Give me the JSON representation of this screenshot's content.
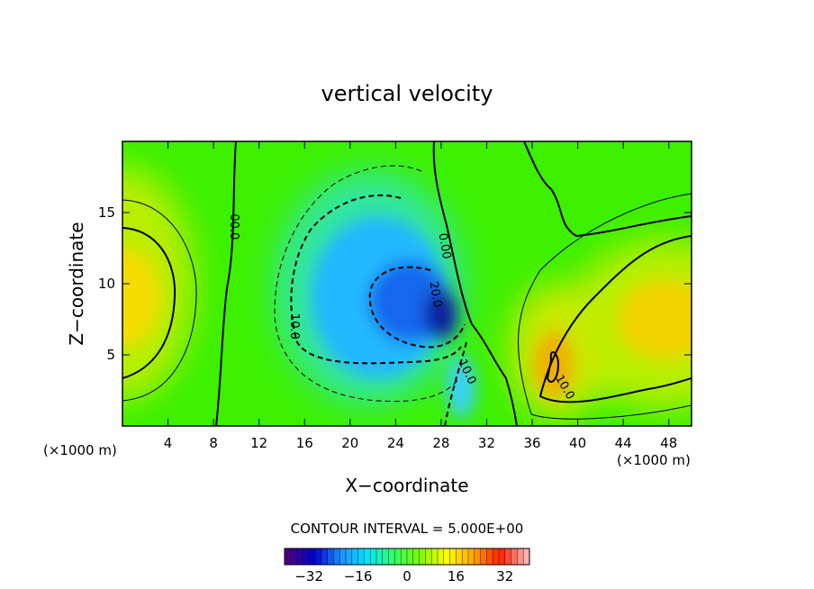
{
  "chart_data": {
    "type": "heatmap",
    "title": "vertical velocity",
    "xlabel": "X−coordinate",
    "ylabel": "Z−coordinate",
    "x_unit": "(×1000 m)",
    "y_unit": "(×1000 m)",
    "xlim": [
      0,
      50
    ],
    "ylim": [
      0,
      20
    ],
    "x_ticks": [
      4,
      8,
      12,
      16,
      20,
      24,
      28,
      32,
      36,
      40,
      44,
      48
    ],
    "y_ticks": [
      5,
      10,
      15
    ],
    "contour_interval_label": "CONTOUR INTERVAL = 5.000E+00",
    "colorbar": {
      "range": [
        -40,
        40
      ],
      "ticks": [
        -32,
        -16,
        0,
        16,
        32
      ],
      "tick_labels": [
        "−32",
        "−16",
        "0",
        "16",
        "32"
      ],
      "colors": [
        "#4b0082",
        "#0000cd",
        "#1e90ff",
        "#00e5ff",
        "#33ff66",
        "#7cfc00",
        "#ffff00",
        "#ffa500",
        "#ff2000",
        "#ffb0b0"
      ]
    },
    "contour_labels": [
      {
        "text": "00.0",
        "x": 9.5,
        "y": 14.0
      },
      {
        "text": "10.0",
        "x": 14.8,
        "y": 7.0
      },
      {
        "text": "0.00",
        "x": 28.0,
        "y": 12.6
      },
      {
        "text": "20.0",
        "x": 27.2,
        "y": 9.2
      },
      {
        "text": "10.0",
        "x": 30.0,
        "y": 3.7
      },
      {
        "text": "10.0",
        "x": 38.6,
        "y": 2.6
      }
    ],
    "extrema": [
      {
        "kind": "min",
        "x": 26.0,
        "y": 9.0,
        "value": -30
      },
      {
        "kind": "max",
        "x": 0.5,
        "y": 9.0,
        "value": 14
      },
      {
        "kind": "max",
        "x": 38.0,
        "y": 3.5,
        "value": 18
      },
      {
        "kind": "max",
        "x": 48.0,
        "y": 7.5,
        "value": 15
      }
    ]
  }
}
